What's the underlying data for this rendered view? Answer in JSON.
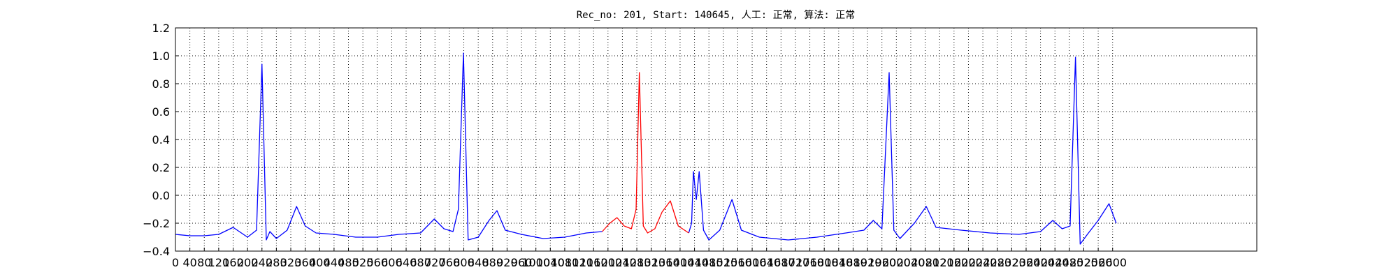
{
  "chart_data": {
    "type": "line",
    "title": "Rec_no: 201, Start: 140645, 人工: 正常, 算法: 正常",
    "x": [
      0,
      40,
      80,
      120,
      160,
      200,
      225,
      240,
      252,
      262,
      280,
      310,
      336,
      360,
      390,
      440,
      500,
      560,
      620,
      680,
      718,
      745,
      770,
      785,
      799,
      812,
      840,
      870,
      892,
      915,
      960,
      1020,
      1080,
      1140,
      1184,
      1205,
      1225,
      1245,
      1265,
      1278,
      1287,
      1298,
      1310,
      1330,
      1350,
      1373,
      1395,
      1424,
      1432,
      1437,
      1445,
      1453,
      1465,
      1480,
      1510,
      1544,
      1570,
      1620,
      1700,
      1780,
      1860,
      1910,
      1936,
      1960,
      1980,
      1993,
      2010,
      2050,
      2083,
      2110,
      2180,
      2260,
      2340,
      2400,
      2434,
      2460,
      2482,
      2497,
      2510,
      2530,
      2560,
      2590,
      2610
    ],
    "series": [
      {
        "color": "#0000ff",
        "values": [
          -0.28,
          -0.29,
          -0.29,
          -0.28,
          -0.23,
          -0.3,
          -0.25,
          0.94,
          -0.32,
          -0.26,
          -0.31,
          -0.25,
          -0.08,
          -0.22,
          -0.27,
          -0.28,
          -0.3,
          -0.3,
          -0.28,
          -0.27,
          -0.17,
          -0.24,
          -0.26,
          -0.1,
          1.02,
          -0.32,
          -0.3,
          -0.18,
          -0.11,
          -0.25,
          -0.28,
          -0.31,
          -0.3,
          -0.27,
          -0.26,
          null,
          null,
          null,
          null,
          null,
          null,
          null,
          null,
          null,
          null,
          null,
          null,
          -0.27,
          -0.2,
          0.17,
          -0.03,
          0.17,
          -0.25,
          -0.32,
          -0.25,
          -0.03,
          -0.25,
          -0.3,
          -0.32,
          -0.3,
          -0.27,
          -0.25,
          -0.18,
          -0.24,
          0.88,
          -0.25,
          -0.31,
          -0.2,
          -0.08,
          -0.23,
          -0.25,
          -0.27,
          -0.28,
          -0.26,
          -0.18,
          -0.24,
          -0.22,
          0.99,
          -0.35,
          -0.28,
          -0.18,
          -0.06,
          -0.2
        ]
      },
      {
        "color": "#ff0000",
        "values": [
          null,
          null,
          null,
          null,
          null,
          null,
          null,
          null,
          null,
          null,
          null,
          null,
          null,
          null,
          null,
          null,
          null,
          null,
          null,
          null,
          null,
          null,
          null,
          null,
          null,
          null,
          null,
          null,
          null,
          null,
          null,
          null,
          null,
          null,
          -0.26,
          -0.2,
          -0.16,
          -0.22,
          -0.24,
          -0.1,
          0.88,
          -0.22,
          -0.27,
          -0.24,
          -0.12,
          -0.04,
          -0.22,
          -0.27,
          null,
          null,
          null,
          null,
          null,
          null,
          null,
          null,
          null,
          null,
          null,
          null,
          null,
          null,
          null,
          null,
          null,
          null,
          null,
          null,
          null,
          null,
          null,
          null,
          null,
          null,
          null,
          null,
          null,
          null,
          null,
          null,
          null,
          null,
          null
        ]
      }
    ],
    "xlim": [
      0,
      3000
    ],
    "xticks": [
      0,
      40,
      80,
      120,
      160,
      200,
      240,
      280,
      320,
      360,
      400,
      440,
      480,
      520,
      560,
      600,
      640,
      680,
      720,
      760,
      800,
      840,
      880,
      920,
      960,
      1000,
      1040,
      1080,
      1120,
      1160,
      1200,
      1240,
      1280,
      1320,
      1360,
      1400,
      1440,
      1480,
      1520,
      1560,
      1600,
      1640,
      1680,
      1720,
      1760,
      1800,
      1840,
      1880,
      1920,
      1960,
      2000,
      2040,
      2080,
      2120,
      2160,
      2200,
      2240,
      2280,
      2320,
      2360,
      2400,
      2440,
      2480,
      2520,
      2560,
      2600
    ],
    "ylim": [
      -0.4,
      1.2
    ],
    "yticks": [
      {
        "value": -0.4,
        "label": "−0.4"
      },
      {
        "value": -0.2,
        "label": "−0.2"
      },
      {
        "value": 0,
        "label": "0.0"
      },
      0.2,
      0.4,
      0.6,
      0.8,
      {
        "value": 1,
        "label": "1.0"
      },
      1.2
    ],
    "grid": true
  }
}
